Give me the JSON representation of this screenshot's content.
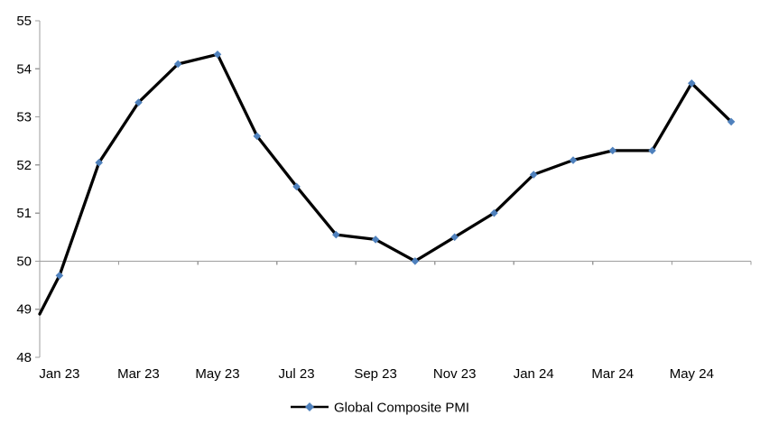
{
  "chart_data": {
    "type": "line",
    "title": "",
    "categories": [
      "Jan 23",
      "Feb 23",
      "Mar 23",
      "Apr 23",
      "May 23",
      "Jun 23",
      "Jul 23",
      "Aug 23",
      "Sep 23",
      "Oct 23",
      "Nov 23",
      "Dec 23",
      "Jan 24",
      "Feb 24",
      "Mar 24",
      "Apr 24",
      "May 24",
      "Jun 24"
    ],
    "series": [
      {
        "name": "Global Composite PMI",
        "values": [
          49.7,
          52.05,
          53.3,
          54.1,
          54.3,
          52.6,
          51.55,
          50.55,
          50.45,
          50.0,
          50.5,
          51.0,
          51.8,
          52.1,
          52.3,
          52.3,
          53.7,
          52.9
        ],
        "marker": "diamond",
        "marker_color": "#4f81bd",
        "line_color": "#000000"
      }
    ],
    "leading_edge_value_at_left_axis": 48.9,
    "ylim": [
      48,
      55
    ],
    "y_ticks": [
      48,
      49,
      50,
      51,
      52,
      53,
      54,
      55
    ],
    "x_tick_labels": [
      "Jan 23",
      "Mar 23",
      "May 23",
      "Jul 23",
      "Sep 23",
      "Nov 23",
      "Jan 24",
      "Mar 24",
      "May 24"
    ],
    "x_label_interval": 2,
    "x_axis_crosses_at_value": 50,
    "grid": false,
    "legend_position": "bottom",
    "axis_color": "#9d9d9d",
    "text_color": "#000000",
    "background_color": "#ffffff"
  },
  "legend": {
    "label": "Global Composite PMI"
  }
}
